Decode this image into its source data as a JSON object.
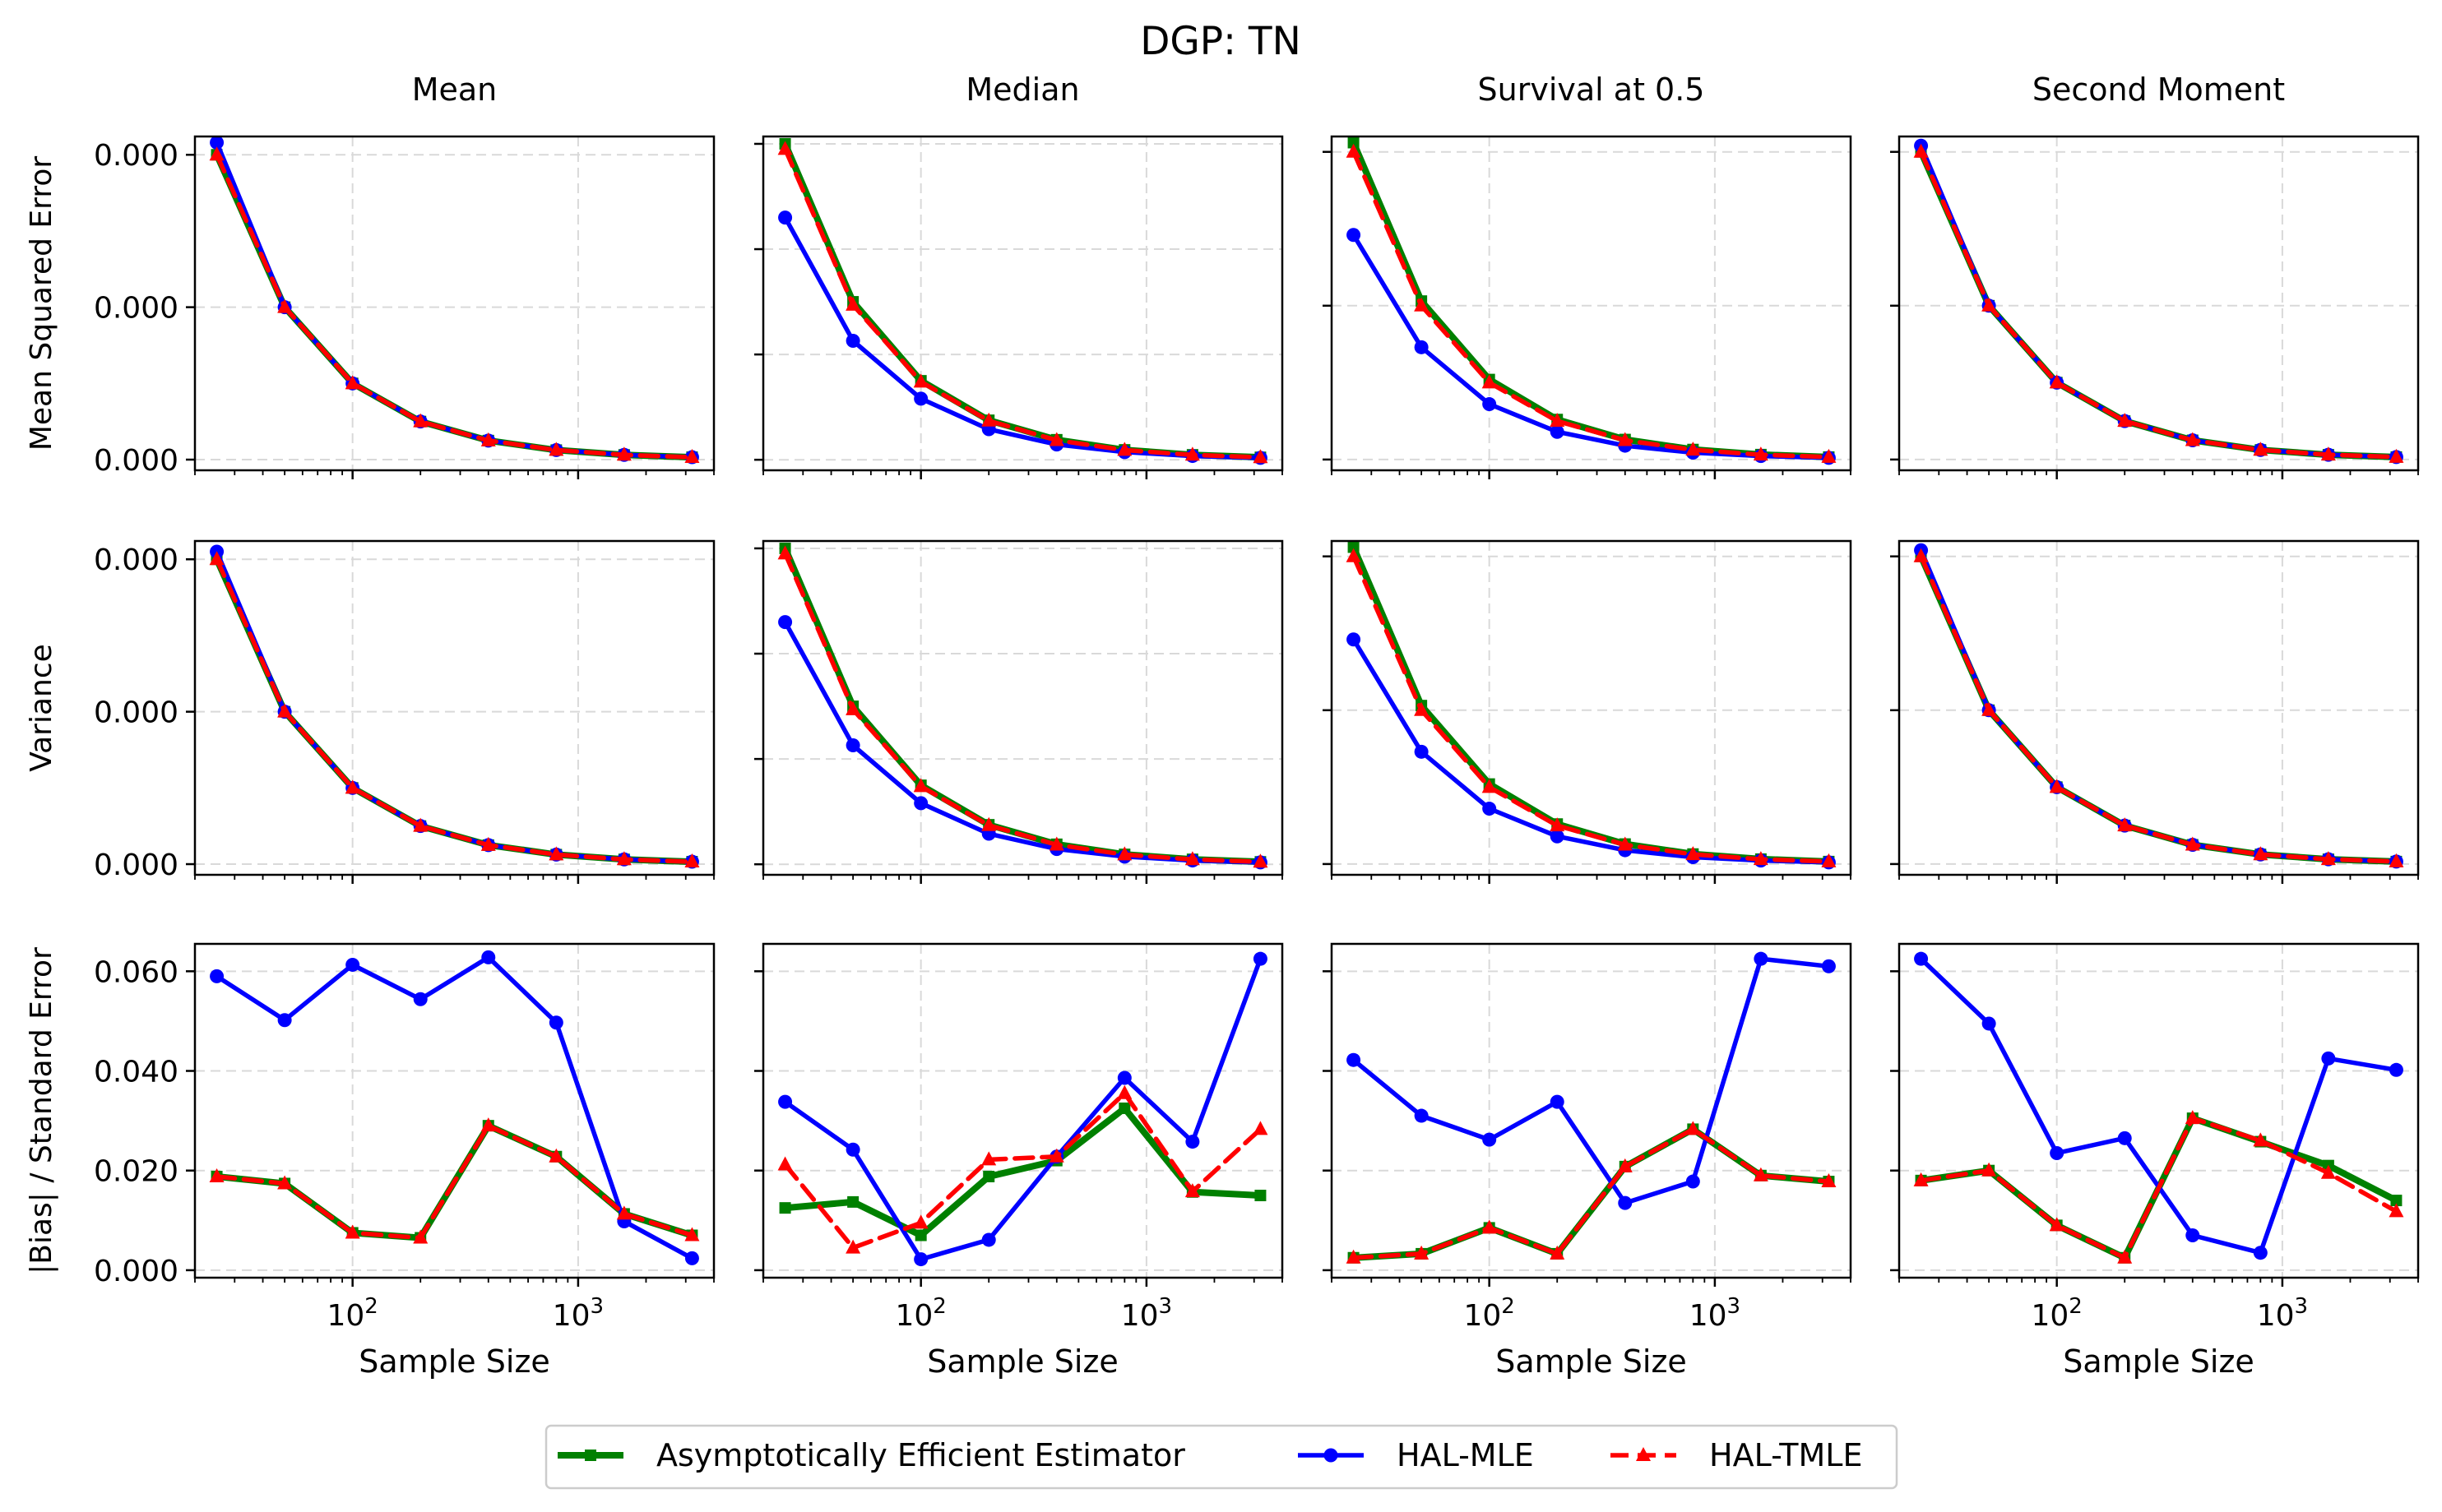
{
  "figure": {
    "suptitle": "DGP: TN",
    "row_labels": [
      "Mean Squared Error",
      "Variance",
      "|Bias| / Standard Error"
    ],
    "col_titles": [
      "Mean",
      "Median",
      "Survival at 0.5",
      "Second Moment"
    ],
    "xlabel": "Sample Size"
  },
  "legend": {
    "items": [
      {
        "label": "Asymptotically Efficient Estimator",
        "color": "#008000",
        "marker": "square",
        "dash": false
      },
      {
        "label": "HAL-MLE",
        "color": "#0000ff",
        "marker": "circle",
        "dash": false
      },
      {
        "label": "HAL-TMLE",
        "color": "#ff0000",
        "marker": "triangle",
        "dash": true
      }
    ]
  },
  "chart_data": {
    "type": "line",
    "x": [
      25,
      50,
      100,
      200,
      400,
      800,
      1600,
      3200
    ],
    "xscale": "log",
    "xlim": [
      20,
      4000
    ],
    "xticks": [
      {
        "value": 100,
        "label": "10^2"
      },
      {
        "value": 1000,
        "label": "10^3"
      }
    ],
    "rows": [
      {
        "name": "Mean Squared Error",
        "yticks": [
          "0.000",
          "0.000",
          "0.000"
        ],
        "panels": [
          {
            "title": "Mean",
            "ylim": [
              -0.007,
              0.212
            ],
            "yticks_at": [
              0,
              0.1,
              0.2
            ],
            "series": {
              "Asymptotically Efficient Estimator": [
                0.2,
                0.1,
                0.05,
                0.025,
                0.0125,
                0.00625,
                0.0031,
                0.0016
              ],
              "HAL-MLE": [
                0.208,
                0.1,
                0.05,
                0.025,
                0.0125,
                0.00625,
                0.0031,
                0.0016
              ],
              "HAL-TMLE": [
                0.2,
                0.1,
                0.05,
                0.025,
                0.0125,
                0.00625,
                0.0031,
                0.0016
              ]
            }
          },
          {
            "title": "Median",
            "ylim": [
              -0.01,
              0.307
            ],
            "yticks_at": [
              0,
              0.1,
              0.2,
              0.3
            ],
            "series": {
              "Asymptotically Efficient Estimator": [
                0.3,
                0.15,
                0.075,
                0.0375,
                0.019,
                0.0094,
                0.0047,
                0.0023
              ],
              "HAL-MLE": [
                0.23,
                0.113,
                0.058,
                0.029,
                0.0145,
                0.0073,
                0.0036,
                0.0018
              ],
              "HAL-TMLE": [
                0.295,
                0.147,
                0.074,
                0.037,
                0.0185,
                0.0092,
                0.0046,
                0.0023
              ]
            }
          },
          {
            "title": "Survival at 0.5",
            "ylim": [
              -0.007,
              0.21
            ],
            "yticks_at": [
              0,
              0.1,
              0.2
            ],
            "series": {
              "Asymptotically Efficient Estimator": [
                0.206,
                0.103,
                0.052,
                0.026,
                0.013,
                0.0065,
                0.0032,
                0.0016
              ],
              "HAL-MLE": [
                0.146,
                0.073,
                0.036,
                0.018,
                0.009,
                0.0045,
                0.0023,
                0.0011
              ],
              "HAL-TMLE": [
                0.2,
                0.1,
                0.05,
                0.025,
                0.0125,
                0.0063,
                0.0031,
                0.0016
              ]
            }
          },
          {
            "title": "Second Moment",
            "ylim": [
              -0.007,
              0.21
            ],
            "yticks_at": [
              0,
              0.1,
              0.2
            ],
            "series": {
              "Asymptotically Efficient Estimator": [
                0.2,
                0.1,
                0.05,
                0.025,
                0.0125,
                0.00625,
                0.0031,
                0.0016
              ],
              "HAL-MLE": [
                0.204,
                0.1,
                0.05,
                0.025,
                0.0125,
                0.00625,
                0.0031,
                0.0016
              ],
              "HAL-TMLE": [
                0.2,
                0.1,
                0.05,
                0.025,
                0.0125,
                0.00625,
                0.0031,
                0.0016
              ]
            }
          }
        ]
      },
      {
        "name": "Variance",
        "yticks": [
          "0.000",
          "0.000",
          "0.000"
        ],
        "panels": [
          {
            "title": "Mean",
            "ylim": [
              -0.007,
              0.212
            ],
            "yticks_at": [
              0,
              0.1,
              0.2
            ],
            "series": {
              "Asymptotically Efficient Estimator": [
                0.2,
                0.1,
                0.05,
                0.025,
                0.0125,
                0.00625,
                0.0031,
                0.0016
              ],
              "HAL-MLE": [
                0.205,
                0.1,
                0.05,
                0.025,
                0.0125,
                0.00625,
                0.0031,
                0.0016
              ],
              "HAL-TMLE": [
                0.2,
                0.1,
                0.05,
                0.025,
                0.0125,
                0.00625,
                0.0031,
                0.0016
              ]
            }
          },
          {
            "title": "Median",
            "ylim": [
              -0.01,
              0.307
            ],
            "yticks_at": [
              0,
              0.1,
              0.2,
              0.3
            ],
            "series": {
              "Asymptotically Efficient Estimator": [
                0.3,
                0.15,
                0.075,
                0.0375,
                0.019,
                0.0094,
                0.0047,
                0.0023
              ],
              "HAL-MLE": [
                0.23,
                0.113,
                0.058,
                0.029,
                0.0145,
                0.0073,
                0.0036,
                0.0018
              ],
              "HAL-TMLE": [
                0.295,
                0.147,
                0.074,
                0.037,
                0.0185,
                0.0092,
                0.0046,
                0.0023
              ]
            }
          },
          {
            "title": "Survival at 0.5",
            "ylim": [
              -0.007,
              0.21
            ],
            "yticks_at": [
              0,
              0.1,
              0.2
            ],
            "series": {
              "Asymptotically Efficient Estimator": [
                0.206,
                0.103,
                0.052,
                0.026,
                0.013,
                0.0065,
                0.0032,
                0.0016
              ],
              "HAL-MLE": [
                0.146,
                0.073,
                0.036,
                0.018,
                0.009,
                0.0045,
                0.0023,
                0.0011
              ],
              "HAL-TMLE": [
                0.2,
                0.1,
                0.05,
                0.025,
                0.0125,
                0.0063,
                0.0031,
                0.0016
              ]
            }
          },
          {
            "title": "Second Moment",
            "ylim": [
              -0.007,
              0.21
            ],
            "yticks_at": [
              0,
              0.1,
              0.2
            ],
            "series": {
              "Asymptotically Efficient Estimator": [
                0.2,
                0.1,
                0.05,
                0.025,
                0.0125,
                0.00625,
                0.0031,
                0.0016
              ],
              "HAL-MLE": [
                0.204,
                0.1,
                0.05,
                0.025,
                0.0125,
                0.00625,
                0.0031,
                0.0016
              ],
              "HAL-TMLE": [
                0.2,
                0.1,
                0.05,
                0.025,
                0.0125,
                0.00625,
                0.0031,
                0.0016
              ]
            }
          }
        ]
      },
      {
        "name": "|Bias| / Standard Error",
        "yticks": [
          "0.000",
          "0.020",
          "0.040",
          "0.060"
        ],
        "panels": [
          {
            "title": "Mean",
            "ylim": [
              -0.0015,
              0.0655
            ],
            "yticks_at": [
              0,
              0.02,
              0.04,
              0.06
            ],
            "series": {
              "Asymptotically Efficient Estimator": [
                0.0188,
                0.0174,
                0.0075,
                0.0065,
                0.029,
                0.0228,
                0.0113,
                0.007
              ],
              "HAL-MLE": [
                0.059,
                0.0502,
                0.0613,
                0.0544,
                0.0628,
                0.0497,
                0.0098,
                0.0024
              ],
              "HAL-TMLE": [
                0.0188,
                0.0174,
                0.0075,
                0.0065,
                0.029,
                0.0228,
                0.0113,
                0.007
              ]
            }
          },
          {
            "title": "Median",
            "ylim": [
              -0.0015,
              0.0655
            ],
            "yticks_at": [
              0,
              0.02,
              0.04,
              0.06
            ],
            "series": {
              "Asymptotically Efficient Estimator": [
                0.0125,
                0.0137,
                0.007,
                0.0188,
                0.022,
                0.0325,
                0.0157,
                0.015
              ],
              "HAL-MLE": [
                0.0338,
                0.0242,
                0.0022,
                0.0061,
                0.0228,
                0.0386,
                0.0258,
                0.0625
              ],
              "HAL-TMLE": [
                0.0212,
                0.0045,
                0.0095,
                0.0222,
                0.0228,
                0.0355,
                0.0158,
                0.0283
              ]
            }
          },
          {
            "title": "Survival at 0.5",
            "ylim": [
              -0.0015,
              0.0655
            ],
            "yticks_at": [
              0,
              0.02,
              0.04,
              0.06
            ],
            "series": {
              "Asymptotically Efficient Estimator": [
                0.0025,
                0.0033,
                0.0085,
                0.0033,
                0.0208,
                0.0283,
                0.019,
                0.0178
              ],
              "HAL-MLE": [
                0.0422,
                0.031,
                0.0262,
                0.0338,
                0.0135,
                0.0178,
                0.0625,
                0.061
              ],
              "HAL-TMLE": [
                0.0025,
                0.0033,
                0.0085,
                0.0033,
                0.0208,
                0.0283,
                0.019,
                0.0178
              ]
            }
          },
          {
            "title": "Second Moment",
            "ylim": [
              -0.0015,
              0.0655
            ],
            "yticks_at": [
              0,
              0.02,
              0.04,
              0.06
            ],
            "series": {
              "Asymptotically Efficient Estimator": [
                0.018,
                0.02,
                0.009,
                0.0025,
                0.0305,
                0.0258,
                0.021,
                0.014
              ],
              "HAL-MLE": [
                0.0625,
                0.0495,
                0.0235,
                0.0265,
                0.007,
                0.0035,
                0.0425,
                0.0402
              ],
              "HAL-TMLE": [
                0.018,
                0.02,
                0.009,
                0.0025,
                0.0305,
                0.026,
                0.0195,
                0.0118
              ]
            }
          }
        ]
      }
    ]
  }
}
